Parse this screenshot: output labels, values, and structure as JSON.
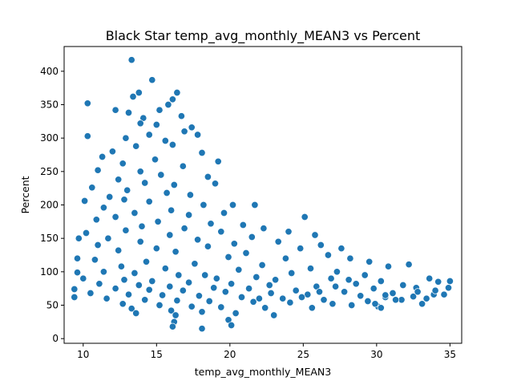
{
  "chart_data": {
    "type": "scatter",
    "title": "Black Star temp_avg_monthly_MEAN3 vs Percent",
    "xlabel": "temp_avg_monthly_MEAN3",
    "ylabel": "Percent",
    "xlim": [
      8.7,
      35.8
    ],
    "ylim": [
      -7,
      437
    ],
    "xticks": [
      10,
      15,
      20,
      25,
      30,
      35
    ],
    "yticks": [
      0,
      50,
      100,
      150,
      200,
      250,
      300,
      350,
      400
    ],
    "grid": false,
    "legend": "none",
    "marker_color": "#1f77b4",
    "marker_edge": "#ffffff",
    "series": [
      {
        "points": [
          [
            13.3,
            417
          ],
          [
            14.7,
            387
          ],
          [
            13.8,
            368
          ],
          [
            16.4,
            368
          ],
          [
            13.4,
            362
          ],
          [
            16.1,
            358
          ],
          [
            15.8,
            350
          ],
          [
            10.3,
            352
          ],
          [
            12.2,
            342
          ],
          [
            13.1,
            338
          ],
          [
            15.2,
            342
          ],
          [
            14.1,
            330
          ],
          [
            16.7,
            333
          ],
          [
            13.9,
            322
          ],
          [
            15.0,
            320
          ],
          [
            17.4,
            316
          ],
          [
            16.9,
            310
          ],
          [
            12.9,
            300
          ],
          [
            14.5,
            305
          ],
          [
            17.8,
            305
          ],
          [
            10.3,
            303
          ],
          [
            15.6,
            296
          ],
          [
            16.1,
            290
          ],
          [
            13.6,
            288
          ],
          [
            12.0,
            280
          ],
          [
            18.1,
            278
          ],
          [
            19.2,
            265
          ],
          [
            11.3,
            272
          ],
          [
            14.9,
            268
          ],
          [
            12.7,
            262
          ],
          [
            16.8,
            258
          ],
          [
            11.0,
            252
          ],
          [
            13.9,
            250
          ],
          [
            15.3,
            245
          ],
          [
            18.5,
            242
          ],
          [
            12.4,
            238
          ],
          [
            14.2,
            233
          ],
          [
            16.2,
            230
          ],
          [
            10.6,
            226
          ],
          [
            19.0,
            232
          ],
          [
            13.0,
            222
          ],
          [
            15.7,
            218
          ],
          [
            17.3,
            215
          ],
          [
            11.8,
            212
          ],
          [
            12.8,
            208
          ],
          [
            10.1,
            206
          ],
          [
            14.5,
            205
          ],
          [
            18.2,
            200
          ],
          [
            20.2,
            200
          ],
          [
            21.7,
            200
          ],
          [
            11.4,
            196
          ],
          [
            16.0,
            192
          ],
          [
            13.5,
            188
          ],
          [
            19.6,
            188
          ],
          [
            17.2,
            185
          ],
          [
            12.2,
            182
          ],
          [
            10.9,
            178
          ],
          [
            15.1,
            175
          ],
          [
            18.7,
            172
          ],
          [
            25.1,
            182
          ],
          [
            20.9,
            170
          ],
          [
            14.0,
            168
          ],
          [
            16.9,
            165
          ],
          [
            22.3,
            165
          ],
          [
            12.9,
            162
          ],
          [
            19.4,
            160
          ],
          [
            10.2,
            158
          ],
          [
            24.0,
            160
          ],
          [
            25.8,
            155
          ],
          [
            15.9,
            155
          ],
          [
            21.5,
            152
          ],
          [
            9.7,
            150
          ],
          [
            11.7,
            150
          ],
          [
            17.8,
            148
          ],
          [
            23.3,
            145
          ],
          [
            13.9,
            145
          ],
          [
            20.3,
            142
          ],
          [
            26.2,
            140
          ],
          [
            11.0,
            140
          ],
          [
            18.5,
            138
          ],
          [
            24.8,
            135
          ],
          [
            27.6,
            135
          ],
          [
            15.0,
            135
          ],
          [
            12.4,
            132
          ],
          [
            16.3,
            130
          ],
          [
            21.1,
            128
          ],
          [
            26.7,
            125
          ],
          [
            9.6,
            120
          ],
          [
            19.9,
            122
          ],
          [
            23.8,
            120
          ],
          [
            28.2,
            120
          ],
          [
            29.5,
            115
          ],
          [
            30.8,
            108
          ],
          [
            32.2,
            111
          ],
          [
            10.8,
            118
          ],
          [
            14.3,
            115
          ],
          [
            17.6,
            112
          ],
          [
            22.2,
            110
          ],
          [
            25.5,
            105
          ],
          [
            27.3,
            100
          ],
          [
            12.6,
            108
          ],
          [
            15.6,
            105
          ],
          [
            20.6,
            103
          ],
          [
            24.2,
            98
          ],
          [
            29.2,
            95
          ],
          [
            33.6,
            90
          ],
          [
            11.4,
            100
          ],
          [
            9.6,
            99
          ],
          [
            13.5,
            98
          ],
          [
            18.3,
            95
          ],
          [
            21.8,
            92
          ],
          [
            26.9,
            90
          ],
          [
            30.3,
            86
          ],
          [
            34.2,
            85
          ],
          [
            35.0,
            86
          ],
          [
            16.5,
            95
          ],
          [
            19.1,
            90
          ],
          [
            23.1,
            88
          ],
          [
            28.6,
            82
          ],
          [
            31.8,
            80
          ],
          [
            10.0,
            90
          ],
          [
            12.8,
            88
          ],
          [
            14.7,
            86
          ],
          [
            17.2,
            84
          ],
          [
            20.1,
            82
          ],
          [
            22.7,
            80
          ],
          [
            25.9,
            78
          ],
          [
            29.8,
            75
          ],
          [
            32.7,
            76
          ],
          [
            34.9,
            76
          ],
          [
            11.1,
            82
          ],
          [
            13.8,
            80
          ],
          [
            15.9,
            78
          ],
          [
            18.9,
            76
          ],
          [
            21.3,
            75
          ],
          [
            24.5,
            72
          ],
          [
            27.8,
            70
          ],
          [
            31.1,
            68
          ],
          [
            33.9,
            66
          ],
          [
            9.4,
            74
          ],
          [
            12.2,
            75
          ],
          [
            14.5,
            73
          ],
          [
            16.8,
            72
          ],
          [
            19.7,
            70
          ],
          [
            22.8,
            68
          ],
          [
            25.3,
            66
          ],
          [
            28.9,
            64
          ],
          [
            30.6,
            62
          ],
          [
            32.5,
            63
          ],
          [
            34.6,
            66
          ],
          [
            10.5,
            68
          ],
          [
            13.1,
            66
          ],
          [
            15.4,
            65
          ],
          [
            17.9,
            64
          ],
          [
            20.8,
            62
          ],
          [
            23.6,
            60
          ],
          [
            26.4,
            58
          ],
          [
            29.4,
            56
          ],
          [
            31.7,
            58
          ],
          [
            33.4,
            60
          ],
          [
            9.4,
            62
          ],
          [
            11.6,
            60
          ],
          [
            14.2,
            58
          ],
          [
            16.4,
            57
          ],
          [
            18.6,
            56
          ],
          [
            21.6,
            55
          ],
          [
            24.1,
            54
          ],
          [
            27.0,
            52
          ],
          [
            30.1,
            48
          ],
          [
            29.9,
            52
          ],
          [
            12.7,
            52
          ],
          [
            15.2,
            50
          ],
          [
            17.4,
            48
          ],
          [
            19.4,
            47
          ],
          [
            22.4,
            46
          ],
          [
            25.6,
            46
          ],
          [
            28.3,
            50
          ],
          [
            30.3,
            46
          ],
          [
            13.3,
            45
          ],
          [
            16.0,
            42
          ],
          [
            18.1,
            40
          ],
          [
            20.4,
            38
          ],
          [
            23.0,
            35
          ],
          [
            13.6,
            38
          ],
          [
            16.3,
            35
          ],
          [
            19.9,
            28
          ],
          [
            16.2,
            25
          ],
          [
            20.1,
            20
          ],
          [
            16.1,
            18
          ],
          [
            18.1,
            15
          ],
          [
            22.0,
            60
          ],
          [
            24.9,
            62
          ],
          [
            26.1,
            70
          ],
          [
            27.2,
            78
          ],
          [
            28.1,
            88
          ],
          [
            30.6,
            65
          ],
          [
            31.3,
            58
          ],
          [
            32.8,
            70
          ],
          [
            33.1,
            52
          ],
          [
            34.0,
            72
          ]
        ]
      }
    ]
  }
}
